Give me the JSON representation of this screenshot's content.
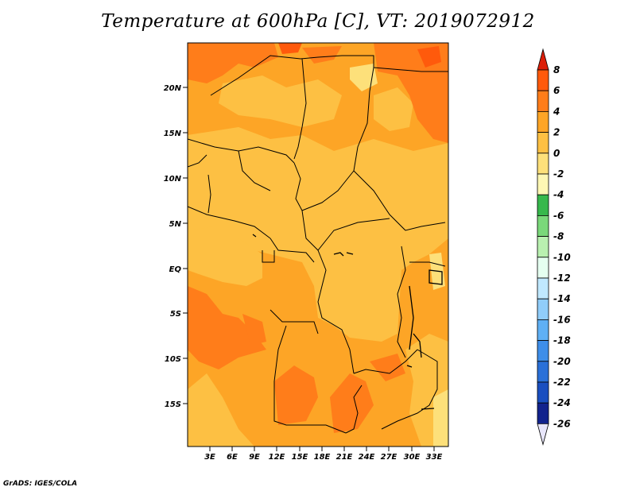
{
  "title": "Temperature at 600hPa [C], VT: 2019072912",
  "footer": "GrADS: IGES/COLA",
  "chart_data": {
    "type": "heatmap",
    "variable": "Temperature",
    "level": "600hPa",
    "units": "C",
    "valid_time": "2019072912",
    "lat_range": [
      -20,
      25
    ],
    "lon_range": [
      0,
      35
    ],
    "lat_ticks": [
      "20N",
      "15N",
      "10N",
      "5N",
      "EQ",
      "5S",
      "10S",
      "15S"
    ],
    "lon_ticks": [
      "3E",
      "6E",
      "9E",
      "12E",
      "15E",
      "18E",
      "21E",
      "24E",
      "27E",
      "30E",
      "33E"
    ],
    "colorbar": {
      "levels": [
        "8",
        "6",
        "4",
        "2",
        "0",
        "-2",
        "-4",
        "-6",
        "-8",
        "-10",
        "-12",
        "-14",
        "-16",
        "-18",
        "-20",
        "-22",
        "-24",
        "-26"
      ],
      "colors": [
        "#dc1e08",
        "#ff5a0c",
        "#ff7d1a",
        "#fda526",
        "#fdc043",
        "#fde07a",
        "#fdf7b4",
        "#37b84c",
        "#7ad87a",
        "#b9f0b0",
        "#e5fff0",
        "#c0e8ff",
        "#90cdfa",
        "#5fb0f5",
        "#3e8ee9",
        "#2a70d8",
        "#1a4fc0",
        "#12238d",
        "#1b0a5a",
        "#e8e6fb"
      ],
      "top_color": "#dc1e08",
      "bottom_color": "#e8e6fb"
    },
    "field_colors": {
      "base": "#fda526",
      "warm": "#ff7d1a",
      "cool": "#fdc043",
      "coolest": "#fde07a"
    }
  }
}
